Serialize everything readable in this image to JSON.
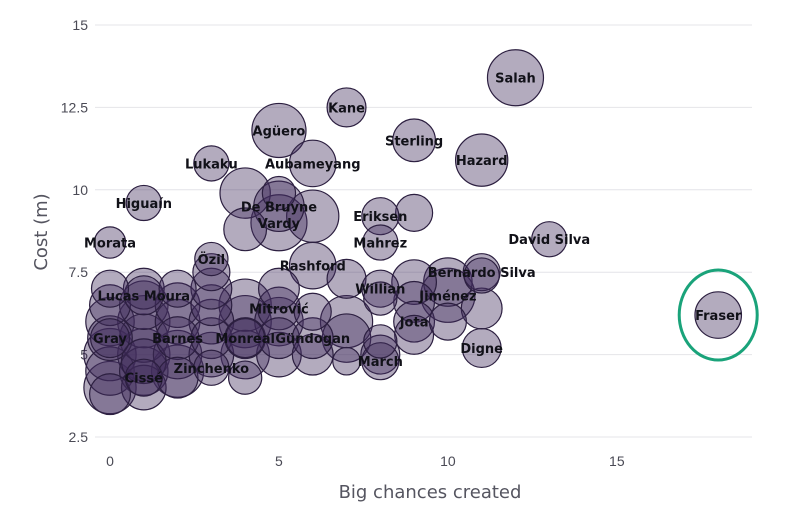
{
  "chart_data": {
    "type": "scatter",
    "subtype": "bubble",
    "xlabel": "Big chances created",
    "ylabel": "Cost (m)",
    "xlim": [
      0,
      19
    ],
    "ylim": [
      2.5,
      15
    ],
    "xticks": [
      "0",
      "5",
      "10",
      "15"
    ],
    "yticks": [
      "2.5",
      "5",
      "7.5",
      "10",
      "12.5",
      "15"
    ],
    "grid": "horizontal",
    "bubble_color": "#402c5c",
    "bubble_edge_color": "#2c1f40",
    "highlight_color": "#1aa37a",
    "highlighted_player": "Fraser",
    "labeled_points": [
      {
        "name": "Salah",
        "x": 12,
        "y": 13.4,
        "size": 1.0
      },
      {
        "name": "Kane",
        "x": 7,
        "y": 12.5,
        "size": 0.55
      },
      {
        "name": "Agüero",
        "x": 5,
        "y": 11.8,
        "size": 0.95
      },
      {
        "name": "Sterling",
        "x": 9,
        "y": 11.5,
        "size": 0.65
      },
      {
        "name": "Hazard",
        "x": 11,
        "y": 10.9,
        "size": 0.9
      },
      {
        "name": "Lukaku",
        "x": 3,
        "y": 10.8,
        "size": 0.45
      },
      {
        "name": "Aubameyang",
        "x": 6,
        "y": 10.8,
        "size": 0.75
      },
      {
        "name": "Higuaín",
        "x": 1,
        "y": 9.6,
        "size": 0.45
      },
      {
        "name": "De Bruyne",
        "x": 5,
        "y": 9.5,
        "size": 0.85
      },
      {
        "name": "Vardy",
        "x": 5,
        "y": 9.0,
        "size": 1.0
      },
      {
        "name": "Eriksen",
        "x": 8,
        "y": 9.2,
        "size": 0.5
      },
      {
        "name": "David Silva",
        "x": 13,
        "y": 8.5,
        "size": 0.45
      },
      {
        "name": "Morata",
        "x": 0,
        "y": 8.4,
        "size": 0.35
      },
      {
        "name": "Mahrez",
        "x": 8,
        "y": 8.4,
        "size": 0.45
      },
      {
        "name": "Özil",
        "x": 3,
        "y": 7.9,
        "size": 0.4
      },
      {
        "name": "Rashford",
        "x": 6,
        "y": 7.7,
        "size": 0.75
      },
      {
        "name": "Bernardo Silva",
        "x": 11,
        "y": 7.5,
        "size": 0.5
      },
      {
        "name": "Willian",
        "x": 8,
        "y": 7.0,
        "size": 0.5
      },
      {
        "name": "Lucas Moura",
        "x": 1,
        "y": 6.8,
        "size": 0.55
      },
      {
        "name": "Jiménez",
        "x": 10,
        "y": 6.8,
        "size": 0.95
      },
      {
        "name": "Mitrović",
        "x": 5,
        "y": 6.4,
        "size": 0.65
      },
      {
        "name": "Fraser",
        "x": 18,
        "y": 6.2,
        "size": 0.75
      },
      {
        "name": "Jota",
        "x": 9,
        "y": 6.0,
        "size": 0.6
      },
      {
        "name": "Gray",
        "x": 0,
        "y": 5.5,
        "size": 0.55
      },
      {
        "name": "Barnes",
        "x": 2,
        "y": 5.5,
        "size": 0.65
      },
      {
        "name": "Monreal",
        "x": 4,
        "y": 5.5,
        "size": 0.55
      },
      {
        "name": "Gündogan",
        "x": 6,
        "y": 5.5,
        "size": 0.6
      },
      {
        "name": "Digne",
        "x": 11,
        "y": 5.2,
        "size": 0.55
      },
      {
        "name": "March",
        "x": 8,
        "y": 4.8,
        "size": 0.5
      },
      {
        "name": "Zinchenko",
        "x": 3,
        "y": 4.6,
        "size": 0.45
      },
      {
        "name": "Cissé",
        "x": 1,
        "y": 4.3,
        "size": 0.5
      }
    ],
    "unlabeled_points": [
      {
        "x": 0,
        "y": 4.0,
        "size": 0.9
      },
      {
        "x": 0,
        "y": 4.5,
        "size": 0.8
      },
      {
        "x": 0,
        "y": 5.0,
        "size": 0.9
      },
      {
        "x": 0,
        "y": 5.5,
        "size": 0.7
      },
      {
        "x": 0,
        "y": 6.0,
        "size": 0.8
      },
      {
        "x": 0,
        "y": 6.5,
        "size": 0.6
      },
      {
        "x": 0,
        "y": 7.0,
        "size": 0.5
      },
      {
        "x": 0,
        "y": 3.8,
        "size": 0.6
      },
      {
        "x": 1,
        "y": 4.0,
        "size": 0.7
      },
      {
        "x": 1,
        "y": 4.5,
        "size": 0.8
      },
      {
        "x": 1,
        "y": 5.0,
        "size": 0.9
      },
      {
        "x": 1,
        "y": 5.5,
        "size": 0.8
      },
      {
        "x": 1,
        "y": 6.0,
        "size": 0.9
      },
      {
        "x": 1,
        "y": 6.5,
        "size": 0.8
      },
      {
        "x": 1,
        "y": 7.0,
        "size": 0.6
      },
      {
        "x": 1,
        "y": 4.8,
        "size": 0.7
      },
      {
        "x": 2,
        "y": 4.5,
        "size": 0.9
      },
      {
        "x": 2,
        "y": 5.0,
        "size": 0.8
      },
      {
        "x": 2,
        "y": 6.0,
        "size": 0.7
      },
      {
        "x": 2,
        "y": 6.5,
        "size": 0.7
      },
      {
        "x": 2,
        "y": 7.0,
        "size": 0.5
      },
      {
        "x": 2,
        "y": 4.3,
        "size": 0.6
      },
      {
        "x": 3,
        "y": 5.0,
        "size": 0.7
      },
      {
        "x": 3,
        "y": 5.5,
        "size": 0.6
      },
      {
        "x": 3,
        "y": 6.0,
        "size": 0.7
      },
      {
        "x": 3,
        "y": 6.5,
        "size": 0.6
      },
      {
        "x": 3,
        "y": 7.0,
        "size": 0.6
      },
      {
        "x": 3,
        "y": 7.5,
        "size": 0.5
      },
      {
        "x": 4,
        "y": 4.3,
        "size": 0.4
      },
      {
        "x": 4,
        "y": 5.0,
        "size": 0.8
      },
      {
        "x": 4,
        "y": 6.0,
        "size": 0.9
      },
      {
        "x": 4,
        "y": 6.5,
        "size": 0.9
      },
      {
        "x": 4,
        "y": 5.5,
        "size": 0.6
      },
      {
        "x": 4,
        "y": 8.8,
        "size": 0.65
      },
      {
        "x": 4,
        "y": 9.9,
        "size": 0.85
      },
      {
        "x": 5,
        "y": 5.0,
        "size": 0.7
      },
      {
        "x": 5,
        "y": 6.0,
        "size": 0.8
      },
      {
        "x": 5,
        "y": 7.0,
        "size": 0.6
      },
      {
        "x": 5,
        "y": 9.9,
        "size": 0.4
      },
      {
        "x": 5,
        "y": 5.5,
        "size": 0.6
      },
      {
        "x": 6,
        "y": 5.0,
        "size": 0.6
      },
      {
        "x": 6,
        "y": 6.3,
        "size": 0.5
      },
      {
        "x": 6,
        "y": 9.2,
        "size": 0.9
      },
      {
        "x": 7,
        "y": 4.8,
        "size": 0.25
      },
      {
        "x": 7,
        "y": 5.5,
        "size": 0.8
      },
      {
        "x": 7,
        "y": 6.0,
        "size": 0.9
      },
      {
        "x": 7,
        "y": 7.3,
        "size": 0.55
      },
      {
        "x": 8,
        "y": 5.0,
        "size": 0.55
      },
      {
        "x": 8,
        "y": 5.4,
        "size": 0.4
      },
      {
        "x": 8,
        "y": 6.7,
        "size": 0.4
      },
      {
        "x": 9,
        "y": 5.6,
        "size": 0.55
      },
      {
        "x": 9,
        "y": 6.6,
        "size": 0.6
      },
      {
        "x": 9,
        "y": 7.2,
        "size": 0.7
      },
      {
        "x": 9,
        "y": 9.3,
        "size": 0.5
      },
      {
        "x": 10,
        "y": 6.0,
        "size": 0.5
      },
      {
        "x": 10,
        "y": 7.2,
        "size": 0.8
      },
      {
        "x": 11,
        "y": 6.4,
        "size": 0.6
      },
      {
        "x": 11,
        "y": 7.4,
        "size": 0.45
      }
    ]
  }
}
